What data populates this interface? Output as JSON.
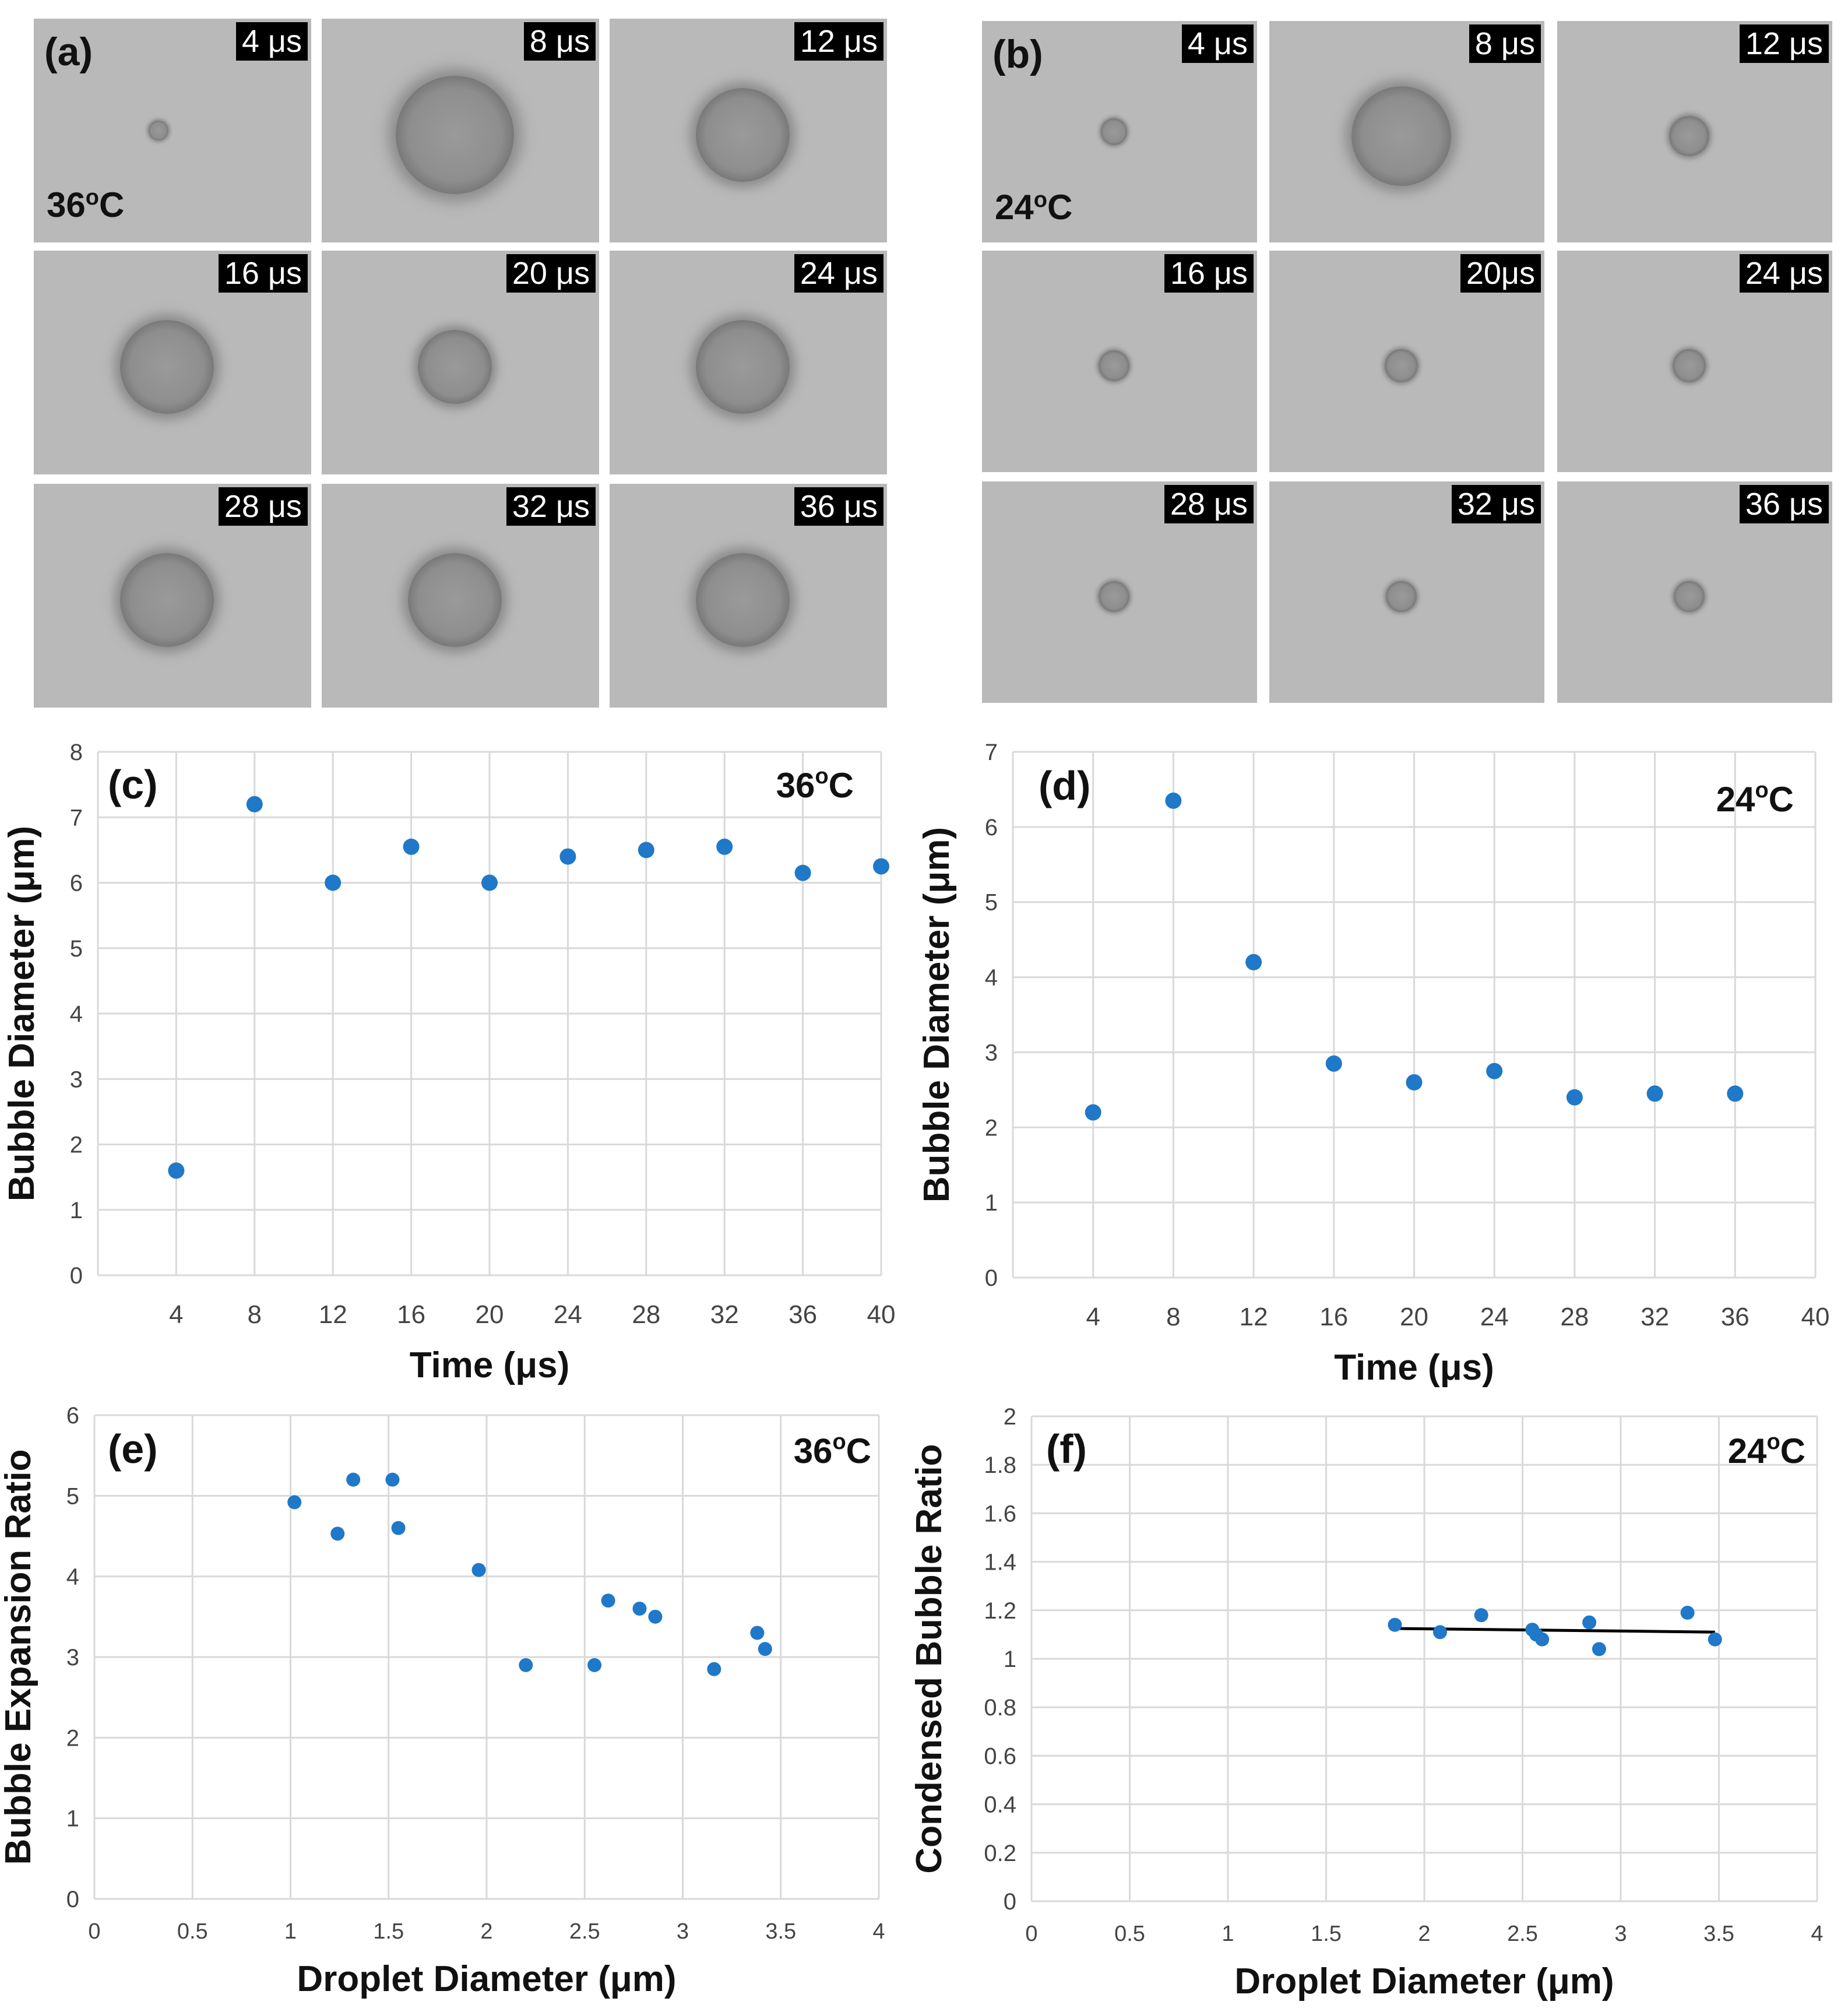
{
  "micrographs": [
    {
      "panel": "(a)",
      "temperature": "36",
      "temperature_unit": "oC",
      "frames": [
        "4 μs",
        "8 μs",
        "12 μs",
        "16 μs",
        "20 μs",
        "24 μs",
        "28 μs",
        "32 μs",
        "36 μs"
      ],
      "bubble_sizes": [
        0.09,
        0.53,
        0.42,
        0.42,
        0.33,
        0.42,
        0.42,
        0.42,
        0.42
      ]
    },
    {
      "panel": "(b)",
      "temperature": "24",
      "temperature_unit": "oC",
      "frames": [
        "4 μs",
        "8 μs",
        "12 μs",
        "16 μs",
        "20μs",
        "24 μs",
        "28 μs",
        "32 μs",
        "36 μs"
      ],
      "bubble_sizes": [
        0.12,
        0.45,
        0.18,
        0.14,
        0.15,
        0.15,
        0.14,
        0.14,
        0.14
      ]
    }
  ],
  "chart_data": [
    {
      "panel": "(c)",
      "type": "scatter",
      "annotation": "36oC",
      "xlabel": "Time (μs)",
      "ylabel": "Bubble Diameter (μm)",
      "xlim": [
        0,
        40
      ],
      "ylim": [
        0,
        8
      ],
      "xticks": [
        4,
        8,
        12,
        16,
        20,
        24,
        28,
        32,
        36,
        40
      ],
      "yticks": [
        0,
        1,
        2,
        3,
        4,
        5,
        6,
        7,
        8
      ],
      "grid": true,
      "color": "#1f78c8",
      "points": [
        [
          4,
          1.6
        ],
        [
          8,
          7.2
        ],
        [
          12,
          6.0
        ],
        [
          16,
          6.55
        ],
        [
          20,
          6.0
        ],
        [
          24,
          6.4
        ],
        [
          28,
          6.5
        ],
        [
          32,
          6.55
        ],
        [
          36,
          6.15
        ],
        [
          40,
          6.25
        ]
      ]
    },
    {
      "panel": "(d)",
      "type": "scatter",
      "annotation": "24oC",
      "xlabel": "Time (μs)",
      "ylabel": "Bubble Diameter (μm)",
      "xlim": [
        0,
        40
      ],
      "ylim": [
        0,
        7
      ],
      "xticks": [
        4,
        8,
        12,
        16,
        20,
        24,
        28,
        32,
        36,
        40
      ],
      "yticks": [
        0,
        1,
        2,
        3,
        4,
        5,
        6,
        7
      ],
      "grid": true,
      "color": "#1f78c8",
      "points": [
        [
          4,
          2.2
        ],
        [
          8,
          6.35
        ],
        [
          12,
          4.2
        ],
        [
          16,
          2.85
        ],
        [
          20,
          2.6
        ],
        [
          24,
          2.75
        ],
        [
          28,
          2.4
        ],
        [
          32,
          2.45
        ],
        [
          36,
          2.45
        ]
      ]
    },
    {
      "panel": "(e)",
      "type": "scatter",
      "annotation": "36oC",
      "xlabel": "Droplet Diameter (μm)",
      "ylabel": "Bubble Expansion Ratio",
      "xlim": [
        0,
        4
      ],
      "ylim": [
        0,
        6
      ],
      "xticks": [
        "0",
        "0.5",
        "1",
        "1.5",
        "2",
        "2.5",
        "3",
        "3.5",
        "4"
      ],
      "yticks": [
        "0",
        "1",
        "2",
        "3",
        "4",
        "5",
        "6"
      ],
      "grid": true,
      "color": "#1f78c8",
      "points": [
        [
          1.02,
          4.92
        ],
        [
          1.24,
          4.53
        ],
        [
          1.32,
          5.2
        ],
        [
          1.52,
          5.2
        ],
        [
          1.55,
          4.6
        ],
        [
          1.96,
          4.08
        ],
        [
          2.2,
          2.9
        ],
        [
          2.55,
          2.9
        ],
        [
          2.62,
          3.7
        ],
        [
          2.78,
          3.6
        ],
        [
          2.86,
          3.5
        ],
        [
          3.16,
          2.85
        ],
        [
          3.38,
          3.3
        ],
        [
          3.42,
          3.1
        ]
      ]
    },
    {
      "panel": "(f)",
      "type": "scatter",
      "annotation": "24oC",
      "xlabel": "Droplet Diameter (μm)",
      "ylabel": "Condensed Bubble Ratio",
      "xlim": [
        0,
        4
      ],
      "ylim": [
        0,
        2
      ],
      "xticks": [
        "0",
        "0.5",
        "1",
        "1.5",
        "2",
        "2.5",
        "3",
        "3.5",
        "4"
      ],
      "yticks": [
        "0",
        "0.2",
        "0.4",
        "0.6",
        "0.8",
        "1",
        "1.2",
        "1.4",
        "1.6",
        "1.8",
        "2"
      ],
      "grid": true,
      "color": "#1f78c8",
      "trendline": [
        [
          1.85,
          1.125
        ],
        [
          3.48,
          1.11
        ]
      ],
      "points": [
        [
          1.85,
          1.14
        ],
        [
          2.08,
          1.11
        ],
        [
          2.29,
          1.18
        ],
        [
          2.55,
          1.12
        ],
        [
          2.57,
          1.1
        ],
        [
          2.6,
          1.08
        ],
        [
          2.84,
          1.15
        ],
        [
          2.89,
          1.04
        ],
        [
          3.34,
          1.19
        ],
        [
          3.48,
          1.08
        ]
      ]
    }
  ]
}
